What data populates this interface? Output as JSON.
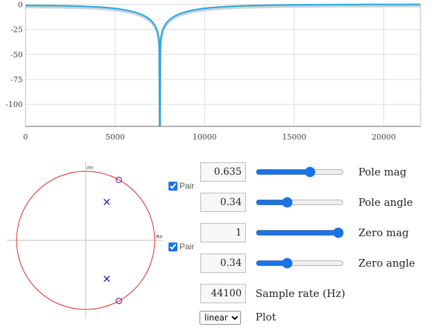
{
  "chart_data": {
    "type": "line",
    "x_ticks": [
      "0",
      "5000",
      "10000",
      "15000",
      "20000"
    ],
    "y_ticks": [
      "0",
      "-25",
      "-50",
      "-75",
      "-100"
    ],
    "xlim": [
      0,
      22050
    ],
    "ylim": [
      -122,
      1
    ],
    "grid": true,
    "series": [
      {
        "notch_frequency": 7500,
        "curve_color": "#29a8e0",
        "shadow_color": "#c9d3da"
      }
    ]
  },
  "zplane": {
    "axis_im": "Im",
    "axis_re": "Re",
    "pole_color": "#1010cc",
    "zero_color": "#7030b0",
    "circle_color": "#e02020",
    "poles": [
      {
        "mag": 0.635,
        "angle": 0.34
      },
      {
        "mag": 0.635,
        "angle": -0.34
      }
    ],
    "zeros": [
      {
        "mag": 1,
        "angle": 0.34
      },
      {
        "mag": 1,
        "angle": -0.34
      }
    ]
  },
  "controls": {
    "pair_label": "Pair",
    "pole_mag": {
      "value": "0.635",
      "label": "Pole mag",
      "slider": 0.635
    },
    "pole_angle": {
      "value": "0.34",
      "label": "Pole angle",
      "slider": 0.34
    },
    "zero_mag": {
      "value": "1",
      "label": "Zero mag",
      "slider": 1
    },
    "zero_angle": {
      "value": "0.34",
      "label": "Zero angle",
      "slider": 0.34
    },
    "sample_rate": {
      "value": "44100",
      "label": "Sample rate (Hz)"
    },
    "plot": {
      "selected": "linear",
      "label": "Plot"
    }
  }
}
